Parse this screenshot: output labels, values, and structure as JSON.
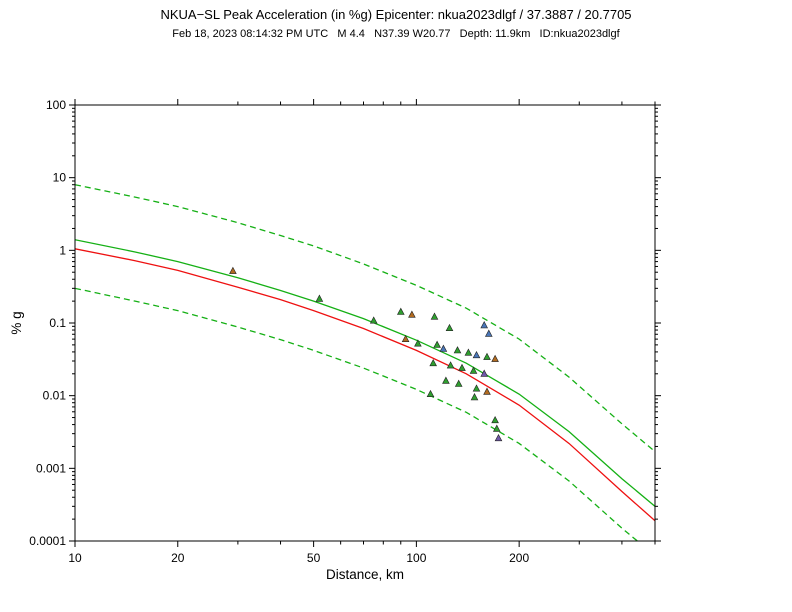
{
  "header": {
    "title": "NKUA−SL Peak Acceleration (in %g) Epicenter: nkua2023dlgf / 37.3887 / 20.7705",
    "subtitle": "Feb 18, 2023 08:14:32 PM UTC   M 4.4   N37.39 W20.77   Depth: 11.9km   ID:nkua2023dlgf"
  },
  "chart_data": {
    "type": "scatter",
    "title": "NKUA−SL Peak Acceleration (in %g) Epicenter: nkua2023dlgf / 37.3887 / 20.7705",
    "subtitle": "Feb 18, 2023 08:14:32 PM UTC   M 4.4   N37.39 W20.77   Depth: 11.9km   ID:nkua2023dlgf",
    "xlabel": "Distance, km",
    "ylabel": "% g",
    "xscale": "log",
    "yscale": "log",
    "xlim": [
      10,
      500
    ],
    "ylim": [
      0.0001,
      100
    ],
    "grid": false,
    "legend": "none",
    "x_ticks": [
      {
        "v": 10,
        "label": "10"
      },
      {
        "v": 20,
        "label": "20"
      },
      {
        "v": 50,
        "label": "50"
      },
      {
        "v": 100,
        "label": "100"
      },
      {
        "v": 200,
        "label": "200"
      }
    ],
    "x_ticks_minor": [
      30,
      40,
      60,
      70,
      80,
      90,
      300,
      400,
      500
    ],
    "y_ticks": [
      {
        "v": 100,
        "label": "100"
      },
      {
        "v": 10,
        "label": "10"
      },
      {
        "v": 1,
        "label": "1"
      },
      {
        "v": 0.1,
        "label": "0.1"
      },
      {
        "v": 0.01,
        "label": "0.01"
      },
      {
        "v": 0.001,
        "label": "0.001"
      },
      {
        "v": 0.0001,
        "label": "0.0001"
      }
    ],
    "curves": [
      {
        "name": "median-plus-sigma",
        "style": "dashed",
        "color": "#15b015",
        "x": [
          10,
          15,
          20,
          30,
          40,
          50,
          70,
          100,
          140,
          200,
          280,
          400,
          500
        ],
        "y": [
          8.0,
          5.4,
          4.0,
          2.4,
          1.6,
          1.15,
          0.65,
          0.33,
          0.16,
          0.06,
          0.018,
          0.0041,
          0.0017
        ]
      },
      {
        "name": "median-minus-sigma",
        "style": "dashed",
        "color": "#15b015",
        "x": [
          10,
          15,
          20,
          30,
          40,
          50,
          70,
          100,
          140,
          200,
          280,
          400,
          500
        ],
        "y": [
          0.3,
          0.2,
          0.148,
          0.088,
          0.059,
          0.042,
          0.024,
          0.0122,
          0.0059,
          0.0022,
          0.00067,
          0.00015,
          6.3e-05
        ]
      },
      {
        "name": "gmpe-median",
        "style": "solid",
        "color": "#15b015",
        "x": [
          10,
          15,
          20,
          30,
          40,
          50,
          70,
          100,
          140,
          200,
          280,
          400,
          500
        ],
        "y": [
          1.4,
          0.95,
          0.7,
          0.42,
          0.28,
          0.2,
          0.115,
          0.058,
          0.028,
          0.0105,
          0.0032,
          0.00072,
          0.0003
        ]
      },
      {
        "name": "bias-adjusted-median",
        "style": "solid",
        "color": "#ee1111",
        "x": [
          10,
          15,
          20,
          30,
          40,
          50,
          70,
          100,
          140,
          200,
          280,
          400,
          500
        ],
        "y": [
          1.05,
          0.72,
          0.53,
          0.31,
          0.21,
          0.148,
          0.084,
          0.042,
          0.02,
          0.0074,
          0.0022,
          0.00048,
          0.00019
        ]
      }
    ],
    "stations": {
      "marker": "triangle",
      "marker_edge": "#222222",
      "colors": {
        "green": "#2f9e2f",
        "orange": "#b06a20",
        "blue": "#4a76b8",
        "purple": "#6f58a8"
      },
      "points": [
        {
          "x": 29,
          "y": 0.52,
          "c": "orange"
        },
        {
          "x": 52,
          "y": 0.215,
          "c": "green"
        },
        {
          "x": 75,
          "y": 0.108,
          "c": "green"
        },
        {
          "x": 90,
          "y": 0.142,
          "c": "green"
        },
        {
          "x": 97,
          "y": 0.13,
          "c": "orange"
        },
        {
          "x": 113,
          "y": 0.122,
          "c": "green"
        },
        {
          "x": 125,
          "y": 0.085,
          "c": "green"
        },
        {
          "x": 158,
          "y": 0.093,
          "c": "blue"
        },
        {
          "x": 163,
          "y": 0.071,
          "c": "blue"
        },
        {
          "x": 93,
          "y": 0.06,
          "c": "orange"
        },
        {
          "x": 101,
          "y": 0.052,
          "c": "green"
        },
        {
          "x": 115,
          "y": 0.05,
          "c": "green"
        },
        {
          "x": 120,
          "y": 0.044,
          "c": "blue"
        },
        {
          "x": 132,
          "y": 0.042,
          "c": "green"
        },
        {
          "x": 142,
          "y": 0.039,
          "c": "green"
        },
        {
          "x": 150,
          "y": 0.036,
          "c": "blue"
        },
        {
          "x": 161,
          "y": 0.034,
          "c": "green"
        },
        {
          "x": 170,
          "y": 0.032,
          "c": "orange"
        },
        {
          "x": 112,
          "y": 0.028,
          "c": "green"
        },
        {
          "x": 126,
          "y": 0.026,
          "c": "green"
        },
        {
          "x": 136,
          "y": 0.024,
          "c": "green"
        },
        {
          "x": 147,
          "y": 0.022,
          "c": "green"
        },
        {
          "x": 158,
          "y": 0.02,
          "c": "purple"
        },
        {
          "x": 122,
          "y": 0.016,
          "c": "green"
        },
        {
          "x": 133,
          "y": 0.0145,
          "c": "green"
        },
        {
          "x": 150,
          "y": 0.0125,
          "c": "green"
        },
        {
          "x": 161,
          "y": 0.0113,
          "c": "orange"
        },
        {
          "x": 110,
          "y": 0.0105,
          "c": "green"
        },
        {
          "x": 148,
          "y": 0.0095,
          "c": "green"
        },
        {
          "x": 170,
          "y": 0.0046,
          "c": "green"
        },
        {
          "x": 172,
          "y": 0.0035,
          "c": "green"
        },
        {
          "x": 174,
          "y": 0.0026,
          "c": "purple"
        }
      ]
    }
  }
}
